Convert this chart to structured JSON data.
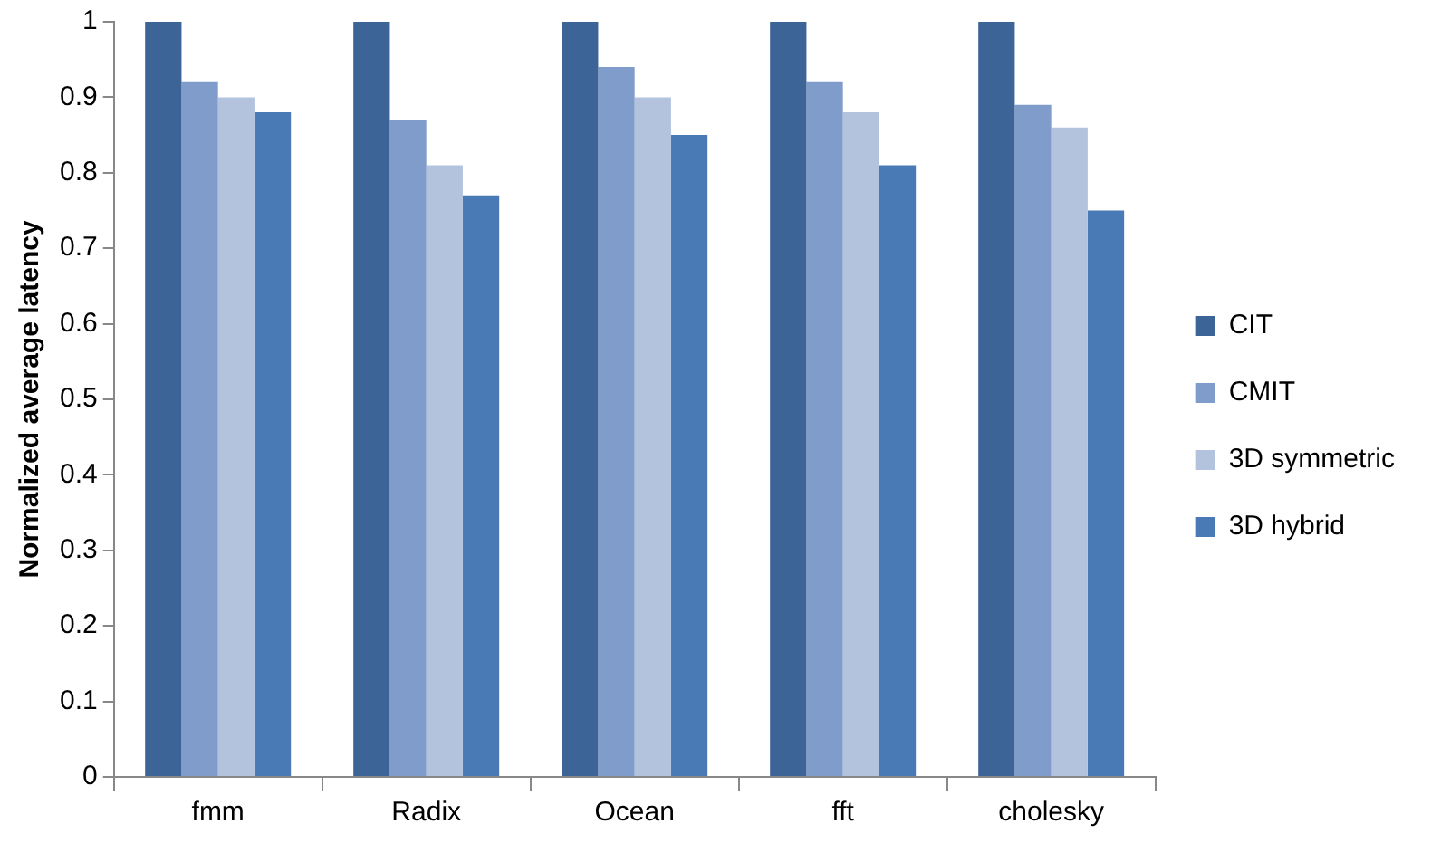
{
  "chart_data": {
    "type": "bar",
    "ylabel": "Normalized average latency",
    "categories": [
      "fmm",
      "Radix",
      "Ocean",
      "fft",
      "cholesky"
    ],
    "series": [
      {
        "name": "CIT",
        "color": "#3c6496",
        "values": [
          1,
          1,
          1,
          1,
          1
        ]
      },
      {
        "name": "CMIT",
        "color": "#7f9ccb",
        "values": [
          0.92,
          0.87,
          0.94,
          0.92,
          0.89
        ]
      },
      {
        "name": "3D symmetric",
        "color": "#b4c3dd",
        "values": [
          0.9,
          0.81,
          0.9,
          0.88,
          0.86
        ]
      },
      {
        "name": "3D hybrid",
        "color": "#4a7ab5",
        "values": [
          0.88,
          0.77,
          0.85,
          0.81,
          0.75
        ]
      }
    ],
    "ylim": [
      0,
      1
    ],
    "yticks": [
      0,
      0.1,
      0.2,
      0.3,
      0.4,
      0.5,
      0.6,
      0.7,
      0.8,
      0.9,
      1
    ],
    "grid": false,
    "legend": "right"
  }
}
